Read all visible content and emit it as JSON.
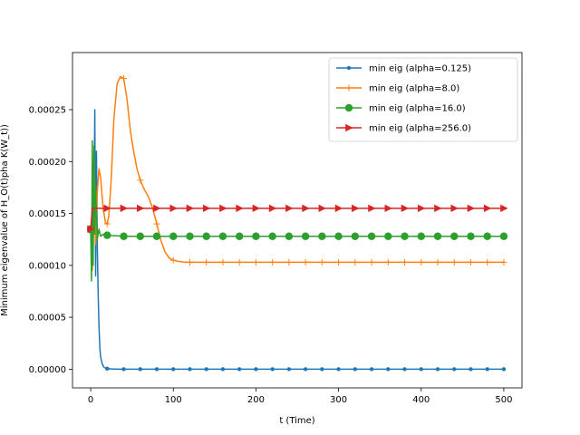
{
  "chart_data": {
    "type": "line",
    "xlabel": "t (Time)",
    "ylabel": "Minimum eigenvalue of H_O(t)pha K(W_t))",
    "xlim": [
      -22,
      522
    ],
    "ylim": [
      -1.8e-05,
      0.000305
    ],
    "xticks": [
      0,
      100,
      200,
      300,
      400,
      500
    ],
    "xtick_labels": [
      "0",
      "100",
      "200",
      "300",
      "400",
      "500"
    ],
    "yticks": [
      0,
      5e-05,
      0.0001,
      0.00015,
      0.0002,
      0.00025
    ],
    "ytick_labels": [
      "0.00000",
      "0.00005",
      "0.00010",
      "0.00015",
      "0.00020",
      "0.00025"
    ],
    "legend_position": "top-right",
    "series": [
      {
        "name": "min eig (alpha=0.125)",
        "color": "#1f77b4",
        "marker": "dot",
        "x": [
          0,
          2,
          4,
          5,
          6,
          7,
          8,
          9,
          10,
          11,
          12,
          14,
          16,
          18,
          20,
          25,
          30,
          40,
          50,
          100,
          200,
          300,
          400,
          500
        ],
        "y": [
          0.000135,
          0.000105,
          0.00016,
          0.00025,
          9e-05,
          0.00021,
          0.00012,
          7.5e-05,
          4.3e-05,
          2.2e-05,
          1.2e-05,
          5e-06,
          2e-06,
          1e-06,
          5e-07,
          2e-07,
          1e-07,
          0,
          0,
          0,
          0,
          0,
          0,
          0
        ]
      },
      {
        "name": "min eig (alpha=8.0)",
        "color": "#ff7f0e",
        "marker": "plus",
        "x": [
          0,
          2,
          4,
          6,
          8,
          10,
          12,
          15,
          18,
          20,
          22,
          25,
          28,
          32,
          36,
          40,
          44,
          48,
          52,
          56,
          60,
          65,
          70,
          75,
          80,
          85,
          90,
          95,
          100,
          105,
          110,
          115,
          120,
          140,
          200,
          300,
          400,
          500
        ],
        "y": [
          0.000135,
          9.5e-05,
          0.00021,
          0.00012,
          0.00017,
          0.000193,
          0.000185,
          0.000155,
          0.000141,
          0.00014,
          0.000148,
          0.000185,
          0.00024,
          0.000275,
          0.000282,
          0.00028,
          0.00026,
          0.00023,
          0.00021,
          0.000193,
          0.000182,
          0.000173,
          0.000166,
          0.000155,
          0.00014,
          0.000124,
          0.000113,
          0.000107,
          0.000105,
          0.000104,
          0.0001035,
          0.000103,
          0.000103,
          0.000103,
          0.000103,
          0.000103,
          0.000103,
          0.000103
        ]
      },
      {
        "name": "min eig (alpha=16.0)",
        "color": "#2ca02c",
        "marker": "circle",
        "x": [
          0,
          1,
          2,
          3,
          4,
          5,
          6,
          8,
          10,
          12,
          15,
          20,
          30,
          40,
          60,
          80,
          100,
          200,
          300,
          400,
          500
        ],
        "y": [
          0.000135,
          8.5e-05,
          0.00022,
          0.0001,
          0.000215,
          0.00013,
          0.000175,
          0.000125,
          0.000135,
          0.000128,
          0.00013,
          0.000129,
          0.0001285,
          0.000128,
          0.000128,
          0.000128,
          0.000128,
          0.000128,
          0.000128,
          0.000128,
          0.000128
        ]
      },
      {
        "name": "min eig (alpha=256.0)",
        "color": "#d62728",
        "marker": "triangle-right",
        "x": [
          -2,
          0,
          2,
          4,
          6,
          10,
          20,
          50,
          100,
          200,
          300,
          400,
          500
        ],
        "y": [
          0.000131,
          0.000135,
          0.000155,
          0.000155,
          0.000155,
          0.000155,
          0.000155,
          0.000155,
          0.000155,
          0.000155,
          0.000155,
          0.000155,
          0.000155
        ]
      }
    ]
  }
}
